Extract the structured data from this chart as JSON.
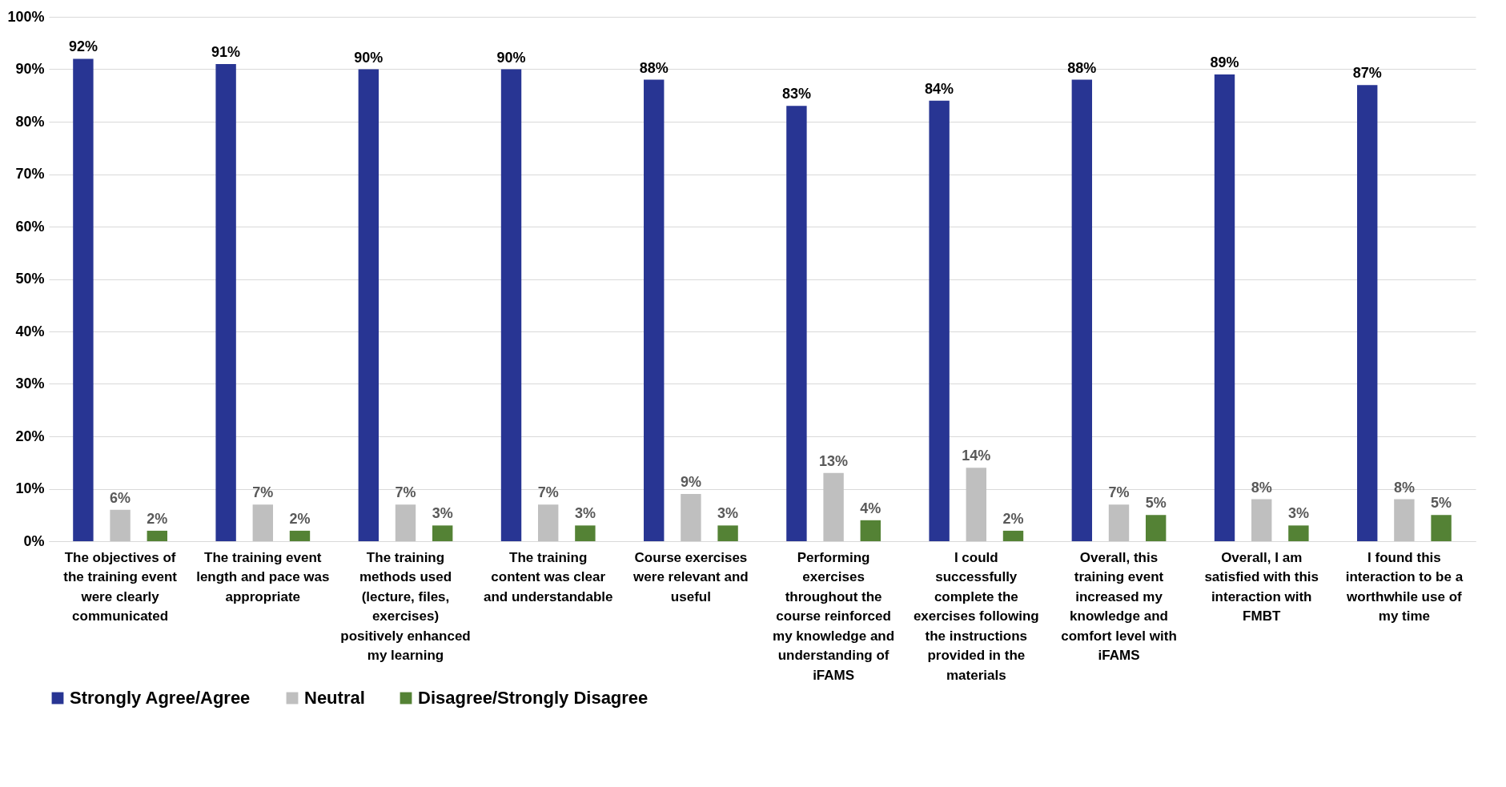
{
  "chart_data": {
    "type": "bar",
    "categories": [
      "The objectives of the training event were clearly communicated",
      "The training event length and pace was appropriate",
      "The training methods used (lecture, files, exercises) positively enhanced my learning",
      "The training content was clear and understandable",
      "Course exercises were relevant and useful",
      "Performing exercises throughout the course reinforced my knowledge and understanding of iFAMS",
      "I could successfully complete the exercises following the instructions provided in the materials",
      "Overall, this training event increased my knowledge and comfort level with iFAMS",
      "Overall, I am satisfied with this interaction with FMBT",
      "I found this interaction to be a worthwhile use of my time"
    ],
    "series": [
      {
        "name": "Strongly Agree/Agree",
        "color": "#283593",
        "values": [
          92,
          91,
          90,
          90,
          88,
          83,
          84,
          88,
          89,
          87
        ],
        "value_labels": [
          "92%",
          "91%",
          "90%",
          "90%",
          "88%",
          "83%",
          "84%",
          "88%",
          "89%",
          "87%"
        ]
      },
      {
        "name": "Neutral",
        "color": "#bfbfbf",
        "values": [
          6,
          7,
          7,
          7,
          9,
          13,
          14,
          7,
          8,
          8
        ],
        "value_labels": [
          "6%",
          "7%",
          "7%",
          "7%",
          "9%",
          "13%",
          "14%",
          "7%",
          "8%",
          "8%"
        ]
      },
      {
        "name": "Disagree/Strongly Disagree",
        "color": "#548235",
        "values": [
          2,
          2,
          3,
          3,
          3,
          4,
          2,
          5,
          3,
          5
        ],
        "value_labels": [
          "2%",
          "2%",
          "3%",
          "3%",
          "3%",
          "4%",
          "2%",
          "5%",
          "3%",
          "5%"
        ]
      }
    ],
    "ylim": [
      0,
      100
    ],
    "yticks": [
      {
        "value": 0,
        "label": "0%"
      },
      {
        "value": 10,
        "label": "10%"
      },
      {
        "value": 20,
        "label": "20%"
      },
      {
        "value": 30,
        "label": "30%"
      },
      {
        "value": 40,
        "label": "40%"
      },
      {
        "value": 50,
        "label": "50%"
      },
      {
        "value": 60,
        "label": "60%"
      },
      {
        "value": 70,
        "label": "70%"
      },
      {
        "value": 80,
        "label": "80%"
      },
      {
        "value": 90,
        "label": "90%"
      },
      {
        "value": 100,
        "label": "100%"
      }
    ],
    "grid": "y",
    "legend": "bottom"
  }
}
